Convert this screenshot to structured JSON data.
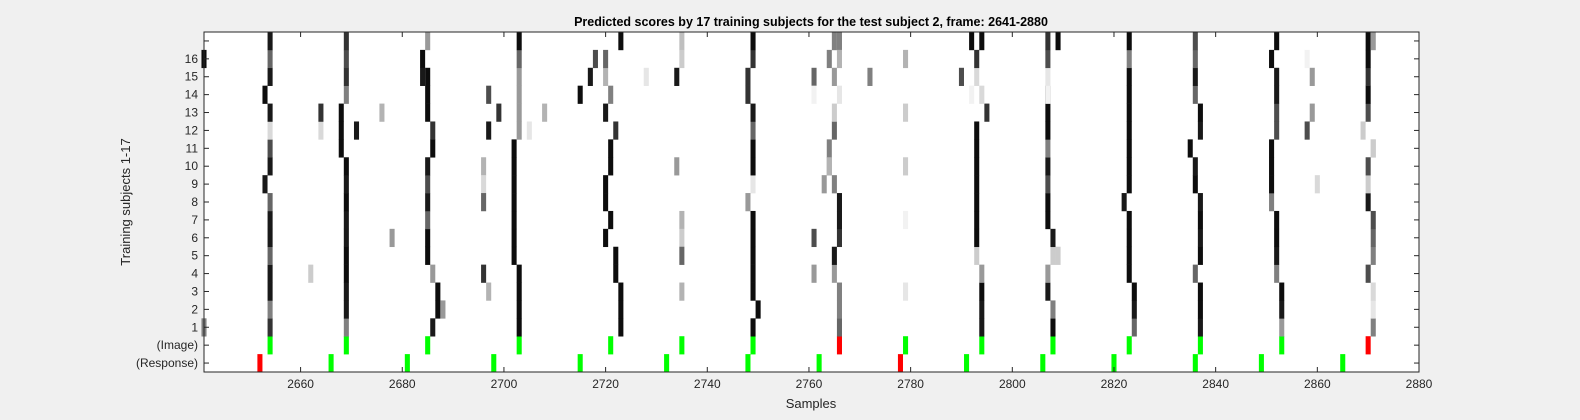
{
  "chart_data": {
    "type": "heatmap",
    "title": "Predicted scores by 17 training subjects for the test subject 2, frame: 2641-2880",
    "xlabel": "Samples",
    "ylabel": "Training subjects 1-17",
    "xlim": [
      2641,
      2880
    ],
    "xticks": [
      "2660",
      "2680",
      "2700",
      "2720",
      "2740",
      "2760",
      "2780",
      "2800",
      "2820",
      "2840",
      "2860",
      "2880"
    ],
    "xtick_values": [
      2660,
      2680,
      2700,
      2720,
      2740,
      2760,
      2780,
      2800,
      2820,
      2840,
      2860,
      2880
    ],
    "row_labels": [
      "(Response)",
      "(Image)",
      "1",
      "2",
      "3",
      "4",
      "5",
      "6",
      "7",
      "8",
      "9",
      "10",
      "11",
      "12",
      "13",
      "14",
      "15",
      "16",
      ""
    ],
    "colors": {
      "background": "#f0f0f0",
      "plot_bg": "#ffffff",
      "hit": "#00ff00",
      "miss": "#ff0000"
    },
    "response_markers": [
      {
        "x": 2652,
        "color": "red"
      },
      {
        "x": 2666,
        "color": "green"
      },
      {
        "x": 2681,
        "color": "green"
      },
      {
        "x": 2698,
        "color": "green"
      },
      {
        "x": 2715,
        "color": "green"
      },
      {
        "x": 2732,
        "color": "green"
      },
      {
        "x": 2748,
        "color": "green"
      },
      {
        "x": 2762,
        "color": "green"
      },
      {
        "x": 2778,
        "color": "red"
      },
      {
        "x": 2791,
        "color": "green"
      },
      {
        "x": 2806,
        "color": "green"
      },
      {
        "x": 2820,
        "color": "green"
      },
      {
        "x": 2836,
        "color": "green"
      },
      {
        "x": 2849,
        "color": "green"
      },
      {
        "x": 2865,
        "color": "green"
      }
    ],
    "image_markers": [
      {
        "x": 2654,
        "color": "green"
      },
      {
        "x": 2669,
        "color": "green"
      },
      {
        "x": 2685,
        "color": "green"
      },
      {
        "x": 2703,
        "color": "green"
      },
      {
        "x": 2721,
        "color": "green"
      },
      {
        "x": 2735,
        "color": "green"
      },
      {
        "x": 2749,
        "color": "green"
      },
      {
        "x": 2766,
        "color": "red"
      },
      {
        "x": 2779,
        "color": "green"
      },
      {
        "x": 2794,
        "color": "green"
      },
      {
        "x": 2808,
        "color": "green"
      },
      {
        "x": 2823,
        "color": "green"
      },
      {
        "x": 2837,
        "color": "green"
      },
      {
        "x": 2853,
        "color": "green"
      },
      {
        "x": 2870,
        "color": "red"
      }
    ],
    "main_lines": [
      {
        "x": [
          2654,
          2654,
          2654,
          2654,
          2654,
          2654,
          2654,
          2654,
          2653,
          2654,
          2654,
          2654,
          2654,
          2653,
          2654,
          2654,
          2654
        ],
        "v": [
          0.8,
          0.5,
          0.9,
          0.9,
          0.6,
          0.9,
          0.9,
          0.6,
          0.9,
          0.9,
          0.7,
          0.15,
          0.9,
          0.95,
          0.9,
          0.6,
          0.9
        ]
      },
      {
        "x": [
          2669,
          2669,
          2669,
          2669,
          2669,
          2669,
          2669,
          2669,
          2669,
          2669,
          2668,
          2668,
          2668,
          2669,
          2669,
          2669,
          2669
        ],
        "v": [
          0.5,
          0.9,
          0.9,
          0.95,
          0.95,
          0.9,
          0.9,
          0.95,
          0.9,
          0.95,
          0.95,
          0.95,
          0.95,
          0.5,
          0.8,
          0.7,
          0.8
        ]
      },
      {
        "x": [
          2686,
          2687,
          2687,
          2686,
          2685,
          2685,
          2685,
          2685,
          2685,
          2685,
          2686,
          2686,
          2685,
          2685,
          2685,
          2684,
          2685
        ],
        "v": [
          0.9,
          0.95,
          0.95,
          0.4,
          0.95,
          0.95,
          0.6,
          0.9,
          0.7,
          0.9,
          0.95,
          0.8,
          0.95,
          0.95,
          0.95,
          0.95,
          0.4
        ]
      },
      {
        "x": [
          2703,
          2703,
          2703,
          2703,
          2702,
          2702,
          2702,
          2702,
          2702,
          2702,
          2702,
          2703,
          2703,
          2703,
          2703,
          2703,
          2703
        ],
        "v": [
          0.95,
          0.95,
          0.95,
          0.95,
          0.95,
          0.95,
          0.95,
          0.95,
          0.95,
          0.95,
          0.95,
          0.4,
          0.4,
          0.4,
          0.4,
          0.6,
          0.95
        ]
      },
      {
        "x": [
          2723,
          2723,
          2723,
          2722,
          2722,
          2720,
          2721,
          2720,
          2720,
          2721,
          2721,
          2722,
          2720,
          2721,
          2720,
          2718,
          2723
        ],
        "v": [
          0.95,
          0.95,
          0.95,
          0.95,
          0.95,
          0.95,
          0.95,
          0.95,
          0.95,
          0.95,
          0.95,
          0.8,
          0.9,
          0.5,
          0.3,
          0.7,
          0.95
        ]
      },
      {
        "x": [
          2749,
          2750,
          2749,
          2749,
          2749,
          2749,
          2749,
          2748,
          2749,
          2749,
          2749,
          2749,
          2749,
          2748,
          2748,
          2749,
          2749
        ],
        "v": [
          0.95,
          0.95,
          0.95,
          0.95,
          0.95,
          0.95,
          0.95,
          0.4,
          0.1,
          0.95,
          0.95,
          0.6,
          0.9,
          0.8,
          0.8,
          0.8,
          0.95
        ]
      },
      {
        "x": [
          2766,
          2766,
          2766,
          2765,
          2765,
          2766,
          2766,
          2766,
          2765,
          2764,
          2764,
          2765,
          2765,
          2766,
          2765,
          2764,
          2765
        ],
        "v": [
          0.6,
          0.5,
          0.5,
          0.4,
          0.9,
          0.8,
          0.9,
          0.9,
          0.5,
          0.4,
          0.5,
          0.6,
          0.2,
          0.1,
          0.4,
          0.5,
          0.5
        ]
      },
      {
        "x": [
          2794,
          2794,
          2794,
          2794,
          2793,
          2793,
          2793,
          2793,
          2793,
          2793,
          2793,
          2793,
          2795,
          2794,
          2793,
          2793,
          2792
        ],
        "v": [
          0.9,
          0.9,
          0.95,
          0.4,
          0.2,
          0.95,
          0.95,
          0.95,
          0.95,
          0.95,
          0.95,
          0.95,
          0.8,
          0.15,
          0.15,
          0.8,
          0.95
        ]
      },
      {
        "x": [
          2808,
          2808,
          2807,
          2807,
          2808,
          2808,
          2807,
          2807,
          2807,
          2807,
          2807,
          2807,
          2807,
          2807,
          2807,
          2807,
          2807
        ],
        "v": [
          0.95,
          0.5,
          0.9,
          0.4,
          0.2,
          0.9,
          0.95,
          0.95,
          0.7,
          0.9,
          0.5,
          0.95,
          0.95,
          0.95,
          0.1,
          0.7,
          0.8
        ]
      },
      {
        "x": [
          2824,
          2824,
          2824,
          2823,
          2823,
          2823,
          2823,
          2822,
          2823,
          2823,
          2823,
          2823,
          2823,
          2823,
          2823,
          2823,
          2823
        ],
        "v": [
          0.6,
          0.9,
          0.95,
          0.95,
          0.95,
          0.95,
          0.95,
          0.9,
          0.95,
          0.95,
          0.95,
          0.95,
          0.95,
          0.95,
          0.95,
          0.5,
          0.95
        ]
      },
      {
        "x": [
          2837,
          2837,
          2837,
          2836,
          2837,
          2837,
          2837,
          2837,
          2836,
          2836,
          2835,
          2837,
          2837,
          2836,
          2836,
          2836,
          2836
        ],
        "v": [
          0.9,
          0.95,
          0.95,
          0.6,
          0.95,
          0.9,
          0.95,
          0.9,
          0.95,
          0.9,
          0.95,
          0.9,
          0.95,
          0.6,
          0.9,
          0.6,
          0.7
        ]
      },
      {
        "x": [
          2853,
          2853,
          2853,
          2852,
          2852,
          2852,
          2852,
          2851,
          2851,
          2851,
          2851,
          2852,
          2852,
          2852,
          2852,
          2851,
          2852
        ],
        "v": [
          0.4,
          0.9,
          0.95,
          0.5,
          0.9,
          0.95,
          0.95,
          0.5,
          0.95,
          0.95,
          0.95,
          0.7,
          0.7,
          0.9,
          0.9,
          0.95,
          0.95
        ]
      },
      {
        "x": [
          2871,
          2871,
          2871,
          2870,
          2871,
          2871,
          2871,
          2870,
          2870,
          2870,
          2871,
          2869,
          2870,
          2870,
          2870,
          2870,
          2870
        ],
        "v": [
          0.5,
          0.1,
          0.15,
          0.7,
          0.5,
          0.6,
          0.7,
          0.9,
          0.2,
          0.7,
          0.2,
          0.2,
          0.7,
          0.95,
          0.8,
          0.95,
          0.95
        ]
      }
    ],
    "extra_cells": [
      {
        "x": 2641,
        "row": 1,
        "v": 0.5
      },
      {
        "x": 2641,
        "row": 16,
        "v": 0.95
      },
      {
        "x": 2662,
        "row": 4,
        "v": 0.2
      },
      {
        "x": 2664,
        "row": 12,
        "v": 0.15
      },
      {
        "x": 2664,
        "row": 13,
        "v": 0.8
      },
      {
        "x": 2671,
        "row": 12,
        "v": 0.9
      },
      {
        "x": 2676,
        "row": 13,
        "v": 0.3
      },
      {
        "x": 2678,
        "row": 6,
        "v": 0.4
      },
      {
        "x": 2684,
        "row": 15,
        "v": 0.9
      },
      {
        "x": 2688,
        "row": 2,
        "v": 0.4
      },
      {
        "x": 2696,
        "row": 4,
        "v": 0.8
      },
      {
        "x": 2696,
        "row": 10,
        "v": 0.3
      },
      {
        "x": 2696,
        "row": 9,
        "v": 0.15
      },
      {
        "x": 2697,
        "row": 12,
        "v": 0.9
      },
      {
        "x": 2697,
        "row": 14,
        "v": 0.7
      },
      {
        "x": 2697,
        "row": 3,
        "v": 0.3
      },
      {
        "x": 2696,
        "row": 8,
        "v": 0.6
      },
      {
        "x": 2699,
        "row": 13,
        "v": 0.8
      },
      {
        "x": 2705,
        "row": 12,
        "v": 0.1
      },
      {
        "x": 2708,
        "row": 13,
        "v": 0.3
      },
      {
        "x": 2715,
        "row": 14,
        "v": 0.95
      },
      {
        "x": 2717,
        "row": 15,
        "v": 0.9
      },
      {
        "x": 2720,
        "row": 16,
        "v": 0.6
      },
      {
        "x": 2728,
        "row": 15,
        "v": 0.1
      },
      {
        "x": 2735,
        "row": 17,
        "v": 0.25
      },
      {
        "x": 2735,
        "row": 16,
        "v": 0.2
      },
      {
        "x": 2734,
        "row": 15,
        "v": 0.9
      },
      {
        "x": 2735,
        "row": 7,
        "v": 0.3
      },
      {
        "x": 2735,
        "row": 6,
        "v": 0.2
      },
      {
        "x": 2735,
        "row": 5,
        "v": 0.6
      },
      {
        "x": 2735,
        "row": 3,
        "v": 0.3
      },
      {
        "x": 2734,
        "row": 10,
        "v": 0.4
      },
      {
        "x": 2761,
        "row": 15,
        "v": 0.6
      },
      {
        "x": 2761,
        "row": 6,
        "v": 0.7
      },
      {
        "x": 2761,
        "row": 4,
        "v": 0.4
      },
      {
        "x": 2763,
        "row": 9,
        "v": 0.4
      },
      {
        "x": 2764,
        "row": 10,
        "v": 0.3
      },
      {
        "x": 2761,
        "row": 14,
        "v": 0.05
      },
      {
        "x": 2766,
        "row": 17,
        "v": 0.5
      },
      {
        "x": 2766,
        "row": 16,
        "v": 0.3
      },
      {
        "x": 2772,
        "row": 15,
        "v": 0.5
      },
      {
        "x": 2779,
        "row": 16,
        "v": 0.3
      },
      {
        "x": 2779,
        "row": 13,
        "v": 0.2
      },
      {
        "x": 2779,
        "row": 10,
        "v": 0.2
      },
      {
        "x": 2779,
        "row": 7,
        "v": 0.05
      },
      {
        "x": 2779,
        "row": 3,
        "v": 0.1
      },
      {
        "x": 2790,
        "row": 15,
        "v": 0.7
      },
      {
        "x": 2792,
        "row": 14,
        "v": 0.05
      },
      {
        "x": 2794,
        "row": 17,
        "v": 0.95
      },
      {
        "x": 2809,
        "row": 17,
        "v": 0.95
      },
      {
        "x": 2809,
        "row": 5,
        "v": 0.2
      },
      {
        "x": 2807,
        "row": 14,
        "v": 0.05
      },
      {
        "x": 2859,
        "row": 15,
        "v": 0.4
      },
      {
        "x": 2859,
        "row": 13,
        "v": 0.4
      },
      {
        "x": 2858,
        "row": 12,
        "v": 0.7
      },
      {
        "x": 2860,
        "row": 9,
        "v": 0.15
      },
      {
        "x": 2871,
        "row": 17,
        "v": 0.4
      },
      {
        "x": 2871,
        "row": 11,
        "v": 0.2
      },
      {
        "x": 2858,
        "row": 16,
        "v": 0.05
      }
    ]
  }
}
